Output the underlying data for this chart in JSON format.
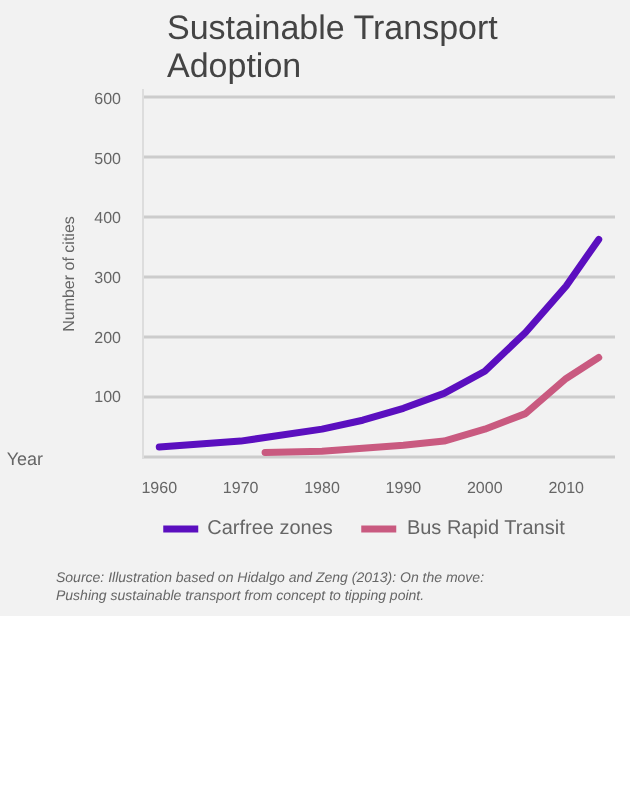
{
  "chart_data": {
    "type": "line",
    "title": "Sustainable Transport Adoption",
    "xlabel": "Year",
    "ylabel": "Number of cities",
    "xlim": [
      1958,
      2016
    ],
    "xticks": [
      1960,
      1970,
      1980,
      1990,
      2000,
      2010
    ],
    "ylim": [
      -5,
      615
    ],
    "yticks": [
      {
        "value": 0,
        "label": null
      },
      100,
      200,
      300,
      400,
      500,
      600
    ],
    "grid": "y",
    "legend": "bottom",
    "marker": "none",
    "line_style": "solid",
    "series": [
      {
        "name": "Carfree zones",
        "color": "#5b0fbf",
        "x": [
          1960,
          1970,
          1980,
          1985,
          1990,
          1995,
          2000,
          2005,
          2010,
          2014
        ],
        "values": [
          15,
          25,
          45,
          60,
          80,
          105,
          142,
          207,
          285,
          363
        ]
      },
      {
        "name": "Bus Rapid Transit",
        "color": "#c95a80",
        "x": [
          1973,
          1980,
          1990,
          1995,
          2000,
          2005,
          2010,
          2014
        ],
        "values": [
          6,
          8,
          18,
          25,
          45,
          71,
          130,
          165
        ]
      }
    ],
    "annotations": [
      "Source: Illustration based on Hidalgo and Zeng (2013): On the move: Pushing sustainable transport from concept to tipping point."
    ]
  }
}
